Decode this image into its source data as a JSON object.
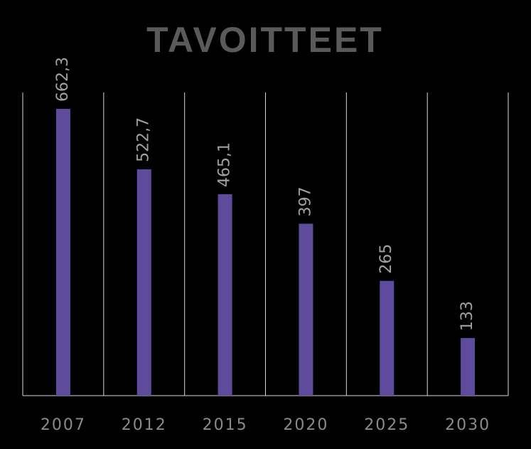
{
  "chart_data": {
    "type": "bar",
    "title": "TAVOITTEET",
    "categories": [
      "2007",
      "2012",
      "2015",
      "2020",
      "2025",
      "2030"
    ],
    "values": [
      662.3,
      522.7,
      465.1,
      397,
      265,
      133
    ],
    "value_labels": [
      "662,3",
      "522,7",
      "465,1",
      "397",
      "265",
      "133"
    ],
    "color": "#5f4b9b",
    "ylim": [
      0,
      700
    ]
  }
}
